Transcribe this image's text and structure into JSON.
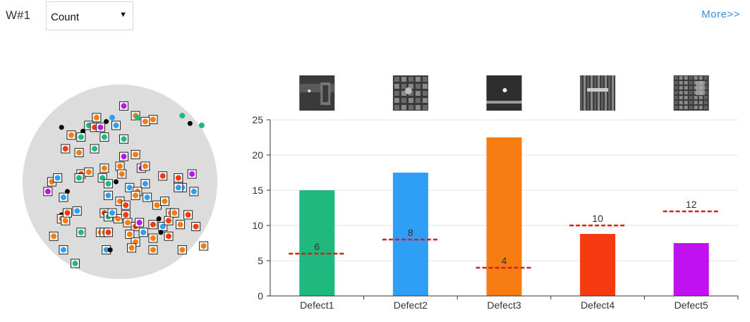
{
  "header": {
    "wafer_label": "W#1",
    "metric_select": {
      "selected": "Count",
      "options": [
        "Count"
      ]
    },
    "more_link": "More>>"
  },
  "colors": {
    "wafer_fill": "#dcdcdc",
    "defect_colors": {
      "Defect1": "#1fb87f",
      "Defect2": "#2f9ef5",
      "Defect3": "#f77c11",
      "Defect4": "#f53a12",
      "Defect5": "#c012f0"
    },
    "threshold_line": "#d42020",
    "unclassified": "#000000"
  },
  "chart_data": {
    "type": "bar",
    "categories": [
      "Defect1",
      "Defect2",
      "Defect3",
      "Defect4",
      "Defect5"
    ],
    "values": [
      15,
      17.5,
      22.5,
      8.8,
      7.5
    ],
    "thresholds": [
      6,
      8,
      4,
      10,
      12
    ],
    "ylim": [
      0,
      25
    ],
    "yticks": [
      0,
      5,
      10,
      15,
      20,
      25
    ],
    "xlabel": "",
    "ylabel": "",
    "grid": true,
    "legend": "none",
    "thumbnails": [
      "defect1-sem-image",
      "defect2-sem-image",
      "defect3-sem-image",
      "defect4-sem-image",
      "defect5-sem-image"
    ]
  },
  "wafer_map": {
    "points": [
      {
        "x": 0.52,
        "y": 0.11,
        "c": 4,
        "b": true
      },
      {
        "x": 0.46,
        "y": 0.17,
        "c": 1,
        "b": false
      },
      {
        "x": 0.58,
        "y": 0.16,
        "c": 2,
        "b": true
      },
      {
        "x": 0.67,
        "y": 0.18,
        "c": 2,
        "b": true
      },
      {
        "x": 0.59,
        "y": 0.17,
        "c": 0,
        "b": false
      },
      {
        "x": 0.38,
        "y": 0.17,
        "c": 2,
        "b": true
      },
      {
        "x": 0.82,
        "y": 0.16,
        "c": 0,
        "b": false
      },
      {
        "x": 0.92,
        "y": 0.21,
        "c": 0,
        "b": false
      },
      {
        "x": 0.86,
        "y": 0.2,
        "c": -1,
        "b": false
      },
      {
        "x": 0.48,
        "y": 0.21,
        "c": 1,
        "b": true
      },
      {
        "x": 0.43,
        "y": 0.19,
        "c": -1,
        "b": false
      },
      {
        "x": 0.31,
        "y": 0.24,
        "c": -1,
        "b": false
      },
      {
        "x": 0.34,
        "y": 0.21,
        "c": 0,
        "b": true
      },
      {
        "x": 0.37,
        "y": 0.22,
        "c": 3,
        "b": true
      },
      {
        "x": 0.4,
        "y": 0.22,
        "c": 4,
        "b": true
      },
      {
        "x": 0.63,
        "y": 0.19,
        "c": 2,
        "b": true
      },
      {
        "x": 0.2,
        "y": 0.22,
        "c": -1,
        "b": false
      },
      {
        "x": 0.25,
        "y": 0.26,
        "c": 2,
        "b": true
      },
      {
        "x": 0.3,
        "y": 0.27,
        "c": 0,
        "b": true
      },
      {
        "x": 0.42,
        "y": 0.27,
        "c": 0,
        "b": true
      },
      {
        "x": 0.52,
        "y": 0.28,
        "c": 0,
        "b": true
      },
      {
        "x": 0.22,
        "y": 0.33,
        "c": 3,
        "b": true
      },
      {
        "x": 0.29,
        "y": 0.35,
        "c": 2,
        "b": true
      },
      {
        "x": 0.37,
        "y": 0.33,
        "c": 0,
        "b": true
      },
      {
        "x": 0.52,
        "y": 0.37,
        "c": 4,
        "b": true
      },
      {
        "x": 0.58,
        "y": 0.36,
        "c": 2,
        "b": true
      },
      {
        "x": 0.61,
        "y": 0.43,
        "c": 4,
        "b": true
      },
      {
        "x": 0.62,
        "y": 0.41,
        "c": -1,
        "b": false
      },
      {
        "x": 0.42,
        "y": 0.43,
        "c": 2,
        "b": true
      },
      {
        "x": 0.5,
        "y": 0.42,
        "c": 2,
        "b": true
      },
      {
        "x": 0.3,
        "y": 0.46,
        "c": 3,
        "b": true
      },
      {
        "x": 0.34,
        "y": 0.45,
        "c": 2,
        "b": true
      },
      {
        "x": 0.41,
        "y": 0.48,
        "c": 0,
        "b": true
      },
      {
        "x": 0.29,
        "y": 0.48,
        "c": 0,
        "b": true
      },
      {
        "x": 0.51,
        "y": 0.46,
        "c": 2,
        "b": true
      },
      {
        "x": 0.48,
        "y": 0.5,
        "c": -1,
        "b": false
      },
      {
        "x": 0.44,
        "y": 0.51,
        "c": 0,
        "b": true
      },
      {
        "x": 0.55,
        "y": 0.53,
        "c": 1,
        "b": true
      },
      {
        "x": 0.63,
        "y": 0.51,
        "c": 1,
        "b": true
      },
      {
        "x": 0.59,
        "y": 0.55,
        "c": 2,
        "b": true
      },
      {
        "x": 0.72,
        "y": 0.47,
        "c": 3,
        "b": true
      },
      {
        "x": 0.8,
        "y": 0.49,
        "c": 0,
        "b": true
      },
      {
        "x": 0.8,
        "y": 0.52,
        "c": -1,
        "b": false
      },
      {
        "x": 0.63,
        "y": 0.42,
        "c": 2,
        "b": true
      },
      {
        "x": 0.88,
        "y": 0.55,
        "c": 1,
        "b": true
      },
      {
        "x": 0.13,
        "y": 0.55,
        "c": 4,
        "b": true
      },
      {
        "x": 0.23,
        "y": 0.55,
        "c": -1,
        "b": false
      },
      {
        "x": 0.21,
        "y": 0.58,
        "c": 1,
        "b": true
      },
      {
        "x": 0.15,
        "y": 0.5,
        "c": 2,
        "b": true
      },
      {
        "x": 0.18,
        "y": 0.48,
        "c": 1,
        "b": true
      },
      {
        "x": 0.87,
        "y": 0.46,
        "c": 4,
        "b": true
      },
      {
        "x": 0.82,
        "y": 0.53,
        "c": 1,
        "b": true
      },
      {
        "x": 0.8,
        "y": 0.48,
        "c": 3,
        "b": true
      },
      {
        "x": 0.44,
        "y": 0.57,
        "c": 1,
        "b": true
      },
      {
        "x": 0.5,
        "y": 0.6,
        "c": 2,
        "b": true
      },
      {
        "x": 0.53,
        "y": 0.62,
        "c": 3,
        "b": true
      },
      {
        "x": 0.58,
        "y": 0.57,
        "c": 2,
        "b": true
      },
      {
        "x": 0.64,
        "y": 0.58,
        "c": 1,
        "b": true
      },
      {
        "x": 0.8,
        "y": 0.53,
        "c": 1,
        "b": true
      },
      {
        "x": 0.69,
        "y": 0.62,
        "c": 2,
        "b": true
      },
      {
        "x": 0.76,
        "y": 0.66,
        "c": 2,
        "b": true
      },
      {
        "x": 0.85,
        "y": 0.67,
        "c": 3,
        "b": true
      },
      {
        "x": 0.2,
        "y": 0.67,
        "c": -1,
        "b": false
      },
      {
        "x": 0.2,
        "y": 0.69,
        "c": 2,
        "b": true
      },
      {
        "x": 0.22,
        "y": 0.7,
        "c": 2,
        "b": true
      },
      {
        "x": 0.23,
        "y": 0.66,
        "c": 3,
        "b": true
      },
      {
        "x": 0.28,
        "y": 0.65,
        "c": 1,
        "b": true
      },
      {
        "x": 0.42,
        "y": 0.66,
        "c": 3,
        "b": true
      },
      {
        "x": 0.44,
        "y": 0.68,
        "c": 0,
        "b": true
      },
      {
        "x": 0.49,
        "y": 0.69,
        "c": 2,
        "b": true
      },
      {
        "x": 0.46,
        "y": 0.66,
        "c": 1,
        "b": true
      },
      {
        "x": 0.53,
        "y": 0.67,
        "c": 3,
        "b": true
      },
      {
        "x": 0.54,
        "y": 0.71,
        "c": 2,
        "b": true
      },
      {
        "x": 0.58,
        "y": 0.73,
        "c": 3,
        "b": true
      },
      {
        "x": 0.6,
        "y": 0.71,
        "c": 4,
        "b": true
      },
      {
        "x": 0.72,
        "y": 0.73,
        "c": 1,
        "b": true
      },
      {
        "x": 0.75,
        "y": 0.7,
        "c": 3,
        "b": true
      },
      {
        "x": 0.78,
        "y": 0.66,
        "c": 2,
        "b": true
      },
      {
        "x": 0.81,
        "y": 0.72,
        "c": 2,
        "b": true
      },
      {
        "x": 0.75,
        "y": 0.78,
        "c": 3,
        "b": true
      },
      {
        "x": 0.7,
        "y": 0.69,
        "c": -1,
        "b": false
      },
      {
        "x": 0.73,
        "y": 0.6,
        "c": 2,
        "b": true
      },
      {
        "x": 0.89,
        "y": 0.73,
        "c": 3,
        "b": true
      },
      {
        "x": 0.16,
        "y": 0.78,
        "c": 2,
        "b": true
      },
      {
        "x": 0.3,
        "y": 0.76,
        "c": 0,
        "b": true
      },
      {
        "x": 0.4,
        "y": 0.76,
        "c": 2,
        "b": true
      },
      {
        "x": 0.42,
        "y": 0.76,
        "c": 2,
        "b": true
      },
      {
        "x": 0.44,
        "y": 0.76,
        "c": 3,
        "b": true
      },
      {
        "x": 0.55,
        "y": 0.77,
        "c": 2,
        "b": true
      },
      {
        "x": 0.58,
        "y": 0.81,
        "c": 2,
        "b": true
      },
      {
        "x": 0.62,
        "y": 0.76,
        "c": 1,
        "b": true
      },
      {
        "x": 0.67,
        "y": 0.79,
        "c": 2,
        "b": true
      },
      {
        "x": 0.67,
        "y": 0.72,
        "c": 3,
        "b": true
      },
      {
        "x": 0.71,
        "y": 0.76,
        "c": -1,
        "b": false
      },
      {
        "x": 0.21,
        "y": 0.85,
        "c": 1,
        "b": true
      },
      {
        "x": 0.43,
        "y": 0.85,
        "c": 1,
        "b": true
      },
      {
        "x": 0.56,
        "y": 0.84,
        "c": 2,
        "b": true
      },
      {
        "x": 0.67,
        "y": 0.85,
        "c": 2,
        "b": true
      },
      {
        "x": 0.82,
        "y": 0.85,
        "c": 2,
        "b": true
      },
      {
        "x": 0.93,
        "y": 0.83,
        "c": 2,
        "b": true
      },
      {
        "x": 0.27,
        "y": 0.92,
        "c": 0,
        "b": true
      },
      {
        "x": 0.45,
        "y": 0.85,
        "c": -1,
        "b": false
      }
    ]
  }
}
